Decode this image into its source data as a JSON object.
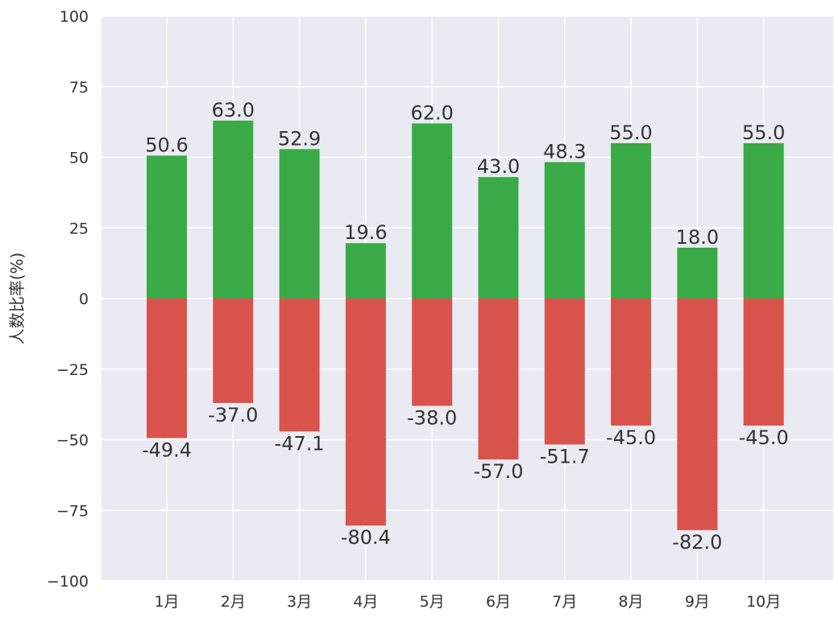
{
  "chart_data": {
    "type": "bar",
    "title": "",
    "xlabel": "",
    "ylabel": "人数比率(%)",
    "categories": [
      "1月",
      "2月",
      "3月",
      "4月",
      "5月",
      "6月",
      "7月",
      "8月",
      "9月",
      "10月"
    ],
    "series": [
      {
        "color": "#3aaa47",
        "values": [
          50.6,
          63.0,
          52.9,
          19.6,
          62.0,
          43.0,
          48.3,
          55.0,
          18.0,
          55.0
        ],
        "labels": [
          "50.6",
          "63.0",
          "52.9",
          "19.6",
          "62.0",
          "43.0",
          "48.3",
          "55.0",
          "18.0",
          "55.0"
        ]
      },
      {
        "color": "#d9534d",
        "values": [
          -49.4,
          -37.0,
          -47.1,
          -80.4,
          -38.0,
          -57.0,
          -51.7,
          -45.0,
          -82.0,
          -45.0
        ],
        "labels": [
          "-49.4",
          "-37.0",
          "-47.1",
          "-80.4",
          "-38.0",
          "-57.0",
          "-51.7",
          "-45.0",
          "-82.0",
          "-45.0"
        ]
      }
    ],
    "ylim": [
      -100,
      100
    ],
    "yticks": [
      100,
      75,
      50,
      25,
      0,
      -25,
      -50,
      -75,
      -100
    ],
    "ytick_labels": [
      "100",
      "75",
      "50",
      "25",
      "0",
      "−25",
      "−50",
      "−75",
      "−100"
    ],
    "grid": true,
    "background_color": "#eaeaf2",
    "grid_color": "#ffffff",
    "legend": "none"
  }
}
